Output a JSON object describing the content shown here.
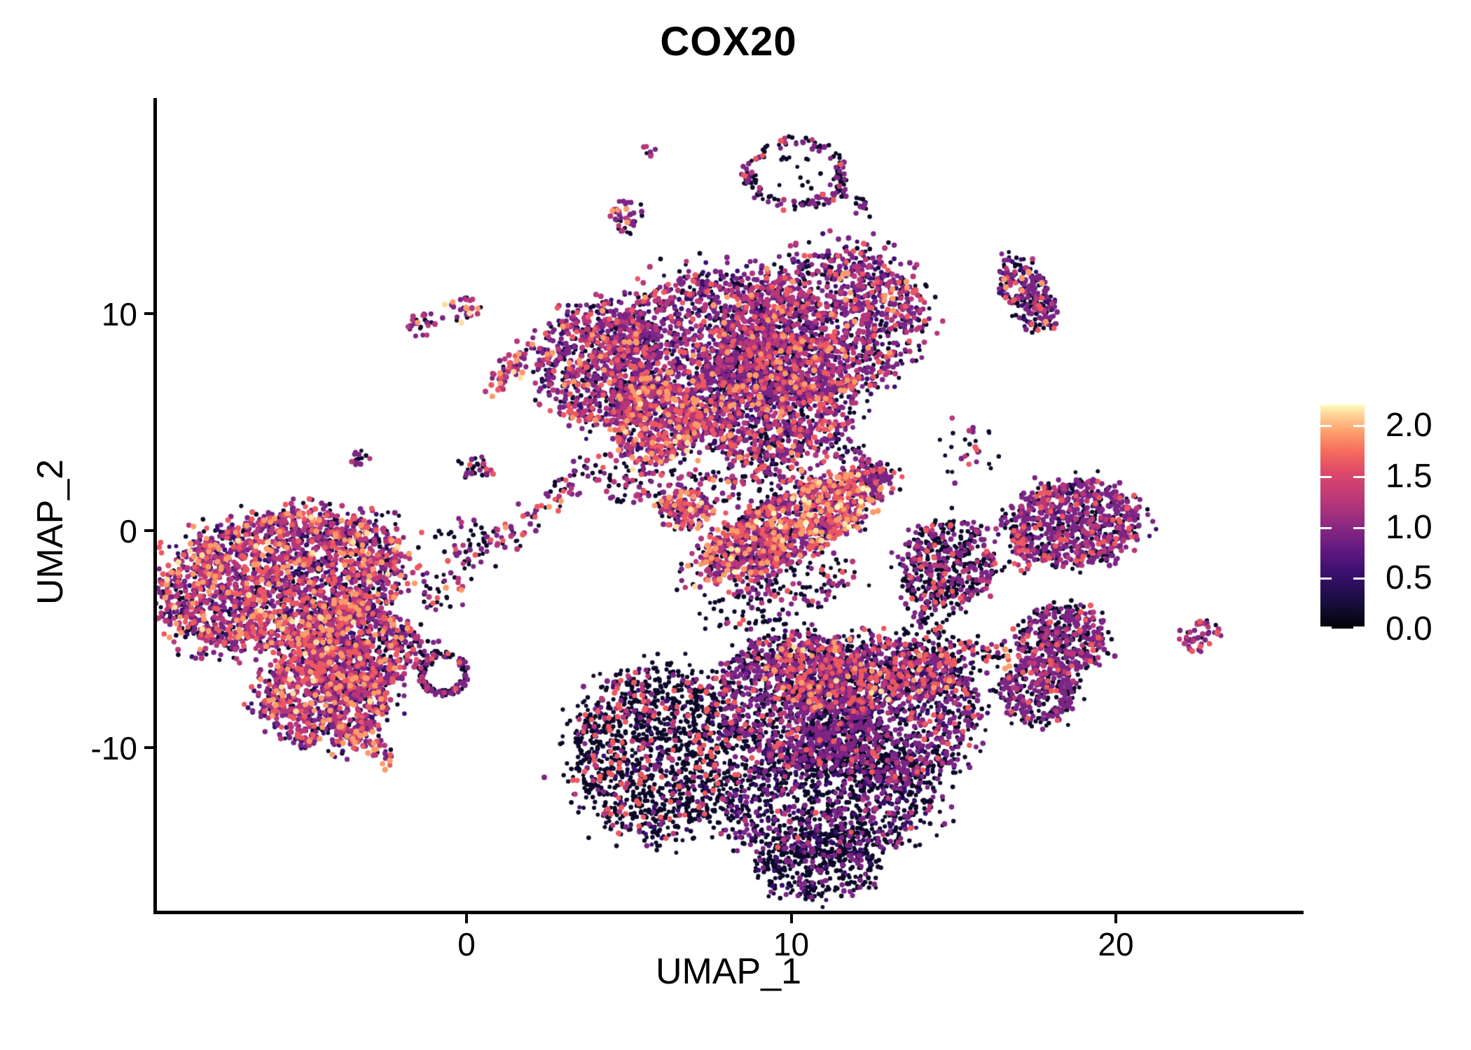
{
  "chart_data": {
    "type": "scatter",
    "title": "COX20",
    "xlabel": "UMAP_1",
    "ylabel": "UMAP_2",
    "x_ticks": [
      {
        "v": 0,
        "label": "0"
      },
      {
        "v": 10,
        "label": "10"
      },
      {
        "v": 20,
        "label": "20"
      }
    ],
    "y_ticks": [
      {
        "v": 10,
        "label": "10"
      },
      {
        "v": 0,
        "label": "0"
      },
      {
        "v": -10,
        "label": "-10"
      }
    ],
    "x_range": [
      -9.6,
      25.7
    ],
    "y_range": [
      -17.6,
      19.9
    ],
    "grid": false,
    "legend": {
      "position": "right",
      "vmin": 0.0,
      "vmax": 2.2,
      "ticks": [
        {
          "v": 2.0,
          "label": "2.0"
        },
        {
          "v": 1.5,
          "label": "1.5"
        },
        {
          "v": 1.0,
          "label": "1.0"
        },
        {
          "v": 0.5,
          "label": "0.5"
        },
        {
          "v": 0.0,
          "label": "0.0"
        }
      ]
    },
    "expression_palette": {
      "black": "#0D0829",
      "dark": "#3B0F70",
      "purple": "#7C2584",
      "magenta": "#B73779",
      "pink": "#EC5860",
      "orange": "#FB9B6A",
      "cream": "#FDDEA0",
      "yellow": "#FCF7BB"
    },
    "colorbar_stops": [
      [
        0,
        "#000004"
      ],
      [
        0.1,
        "#140E36"
      ],
      [
        0.25,
        "#3B0F70"
      ],
      [
        0.36,
        "#641A80"
      ],
      [
        0.46,
        "#8C2981"
      ],
      [
        0.57,
        "#B73779"
      ],
      [
        0.7,
        "#DE4968"
      ],
      [
        0.8,
        "#F7705C"
      ],
      [
        0.88,
        "#FE9F6D"
      ],
      [
        0.95,
        "#FECF92"
      ],
      [
        1,
        "#FCFDBF"
      ]
    ],
    "clusters": [
      {
        "id": "left-core",
        "type": "blob",
        "x": -5.74,
        "y": -2.32,
        "rx": 3.78,
        "ry": 3.06,
        "rot": -10,
        "n": 2400,
        "mix": {
          "black": 0.2,
          "dark": 0.15,
          "purple": 0.26,
          "magenta": 0.2,
          "pink": 0.12,
          "orange": 0.06,
          "cream": 0.01
        }
      },
      {
        "id": "left-core-east",
        "type": "blob",
        "x": -3.47,
        "y": -5.55,
        "rx": 1.73,
        "ry": 2.19,
        "rot": 0,
        "n": 750,
        "mix": {
          "black": 0.22,
          "dark": 0.15,
          "purple": 0.28,
          "magenta": 0.18,
          "pink": 0.1,
          "orange": 0.06,
          "cream": 0.01
        }
      },
      {
        "id": "left-lower-lobe",
        "type": "blob",
        "x": -4.34,
        "y": -7.65,
        "rx": 1.98,
        "ry": 2.32,
        "rot": 0,
        "n": 800,
        "mix": {
          "black": 0.18,
          "dark": 0.14,
          "purple": 0.26,
          "magenta": 0.22,
          "pink": 0.13,
          "orange": 0.06,
          "cream": 0.01
        }
      },
      {
        "id": "left-tail",
        "type": "chain",
        "x1": -4.06,
        "y1": -8.84,
        "x2": -2.29,
        "y2": -10.58,
        "sigma": 7,
        "n": 70,
        "mix": {
          "black": 0.15,
          "dark": 0.1,
          "purple": 0.3,
          "magenta": 0.25,
          "pink": 0.1,
          "orange": 0.1
        }
      },
      {
        "id": "left-east-scatter",
        "type": "blob",
        "x": -0.02,
        "y": -0.39,
        "rx": 0.86,
        "ry": 1.13,
        "rot": 0,
        "n": 35,
        "mix": {
          "black": 0.55,
          "purple": 0.3,
          "magenta": 0.1,
          "pink": 0.05
        }
      },
      {
        "id": "bridge-to-ringlet",
        "type": "chain",
        "x1": -1.96,
        "y1": -4.74,
        "x2": -1.04,
        "y2": -5.94,
        "sigma": 10,
        "n": 45,
        "mix": {
          "black": 0.5,
          "purple": 0.35,
          "magenta": 0.15
        }
      },
      {
        "id": "dark-ringlet",
        "type": "ring",
        "x": -0.71,
        "y": -6.58,
        "rx": 0.73,
        "ry": 0.97,
        "rot": 0,
        "n": 140,
        "mix": {
          "black": 0.56,
          "purple": 0.33,
          "magenta": 0.08,
          "pink": 0.03
        }
      },
      {
        "id": "tiny-west",
        "type": "blob",
        "x": -3.26,
        "y": 3.32,
        "rx": 0.3,
        "ry": 0.39,
        "rot": 0,
        "n": 14,
        "mix": {
          "purple": 0.4,
          "magenta": 0.3,
          "black": 0.3
        }
      },
      {
        "id": "small-pair-a",
        "type": "blob",
        "x": -1.32,
        "y": 9.55,
        "rx": 0.47,
        "ry": 0.58,
        "rot": 0,
        "n": 26,
        "mix": {
          "purple": 0.45,
          "black": 0.28,
          "magenta": 0.15,
          "orange": 0.12
        }
      },
      {
        "id": "small-pair-b",
        "type": "blob",
        "x": -0.17,
        "y": 10.19,
        "rx": 0.54,
        "ry": 0.61,
        "rot": 0,
        "n": 30,
        "mix": {
          "purple": 0.4,
          "black": 0.2,
          "magenta": 0.2,
          "orange": 0.14,
          "cream": 0.06
        }
      },
      {
        "id": "bright-chain",
        "type": "chain",
        "x1": 0.73,
        "y1": 6.65,
        "x2": 2.07,
        "y2": 8.45,
        "sigma": 9,
        "n": 58,
        "mix": {
          "purple": 0.3,
          "magenta": 0.25,
          "black": 0.15,
          "pink": 0.12,
          "orange": 0.12,
          "cream": 0.06
        }
      },
      {
        "id": "tiny-top",
        "type": "blob",
        "x": 5.65,
        "y": 17.52,
        "rx": 0.22,
        "ry": 0.29,
        "rot": 0,
        "n": 7,
        "mix": {
          "magenta": 0.45,
          "purple": 0.3,
          "black": 0.25
        }
      },
      {
        "id": "small-top",
        "type": "blob",
        "x": 4.98,
        "y": 14.42,
        "rx": 0.58,
        "ry": 0.77,
        "rot": 0,
        "n": 42,
        "mix": {
          "purple": 0.42,
          "black": 0.25,
          "magenta": 0.15,
          "orange": 0.15,
          "pink": 0.03
        }
      },
      {
        "id": "top-ring",
        "type": "ring",
        "x": 10.12,
        "y": 16.45,
        "rx": 1.55,
        "ry": 1.61,
        "rot": 0,
        "n": 150,
        "mix": {
          "black": 0.58,
          "purple": 0.32,
          "magenta": 0.07,
          "pink": 0.03
        }
      },
      {
        "id": "top-ring-tail",
        "type": "chain",
        "x1": 11.2,
        "y1": 16.0,
        "x2": 12.23,
        "y2": 14.84,
        "sigma": 6,
        "n": 22,
        "mix": {
          "black": 0.7,
          "purple": 0.3
        }
      },
      {
        "id": "top-ring-inner",
        "type": "blob",
        "x": 10.12,
        "y": 16.45,
        "rx": 0.8,
        "ry": 0.85,
        "rot": 0,
        "n": 14,
        "mix": {
          "black": 0.85,
          "purple": 0.15
        }
      },
      {
        "id": "center-main-west",
        "type": "blob",
        "x": 7.42,
        "y": 8.16,
        "rx": 3.24,
        "ry": 3.71,
        "rot": -15,
        "n": 1450,
        "mix": {
          "black": 0.27,
          "dark": 0.18,
          "purple": 0.3,
          "magenta": 0.15,
          "pink": 0.08,
          "orange": 0.02
        }
      },
      {
        "id": "center-main-east",
        "type": "blob",
        "x": 10.87,
        "y": 9.35,
        "rx": 3.24,
        "ry": 3.29,
        "rot": -20,
        "n": 1550,
        "mix": {
          "black": 0.25,
          "dark": 0.17,
          "purple": 0.32,
          "magenta": 0.17,
          "pink": 0.07,
          "orange": 0.02
        }
      },
      {
        "id": "center-main-south",
        "type": "blob",
        "x": 9.36,
        "y": 5.9,
        "rx": 2.59,
        "ry": 2.74,
        "rot": 0,
        "n": 900,
        "mix": {
          "black": 0.3,
          "dark": 0.15,
          "purple": 0.28,
          "magenta": 0.15,
          "pink": 0.09,
          "orange": 0.03
        }
      },
      {
        "id": "center-west-arm",
        "type": "blob",
        "x": 4.14,
        "y": 7.68,
        "rx": 1.9,
        "ry": 2.74,
        "rot": 15,
        "n": 800,
        "mix": {
          "black": 0.22,
          "dark": 0.18,
          "purple": 0.34,
          "magenta": 0.16,
          "pink": 0.08,
          "orange": 0.02
        }
      },
      {
        "id": "center-hotspot",
        "type": "blob",
        "x": 5.8,
        "y": 4.94,
        "rx": 1.34,
        "ry": 1.87,
        "rot": 0,
        "n": 430,
        "mix": {
          "black": 0.18,
          "dark": 0.1,
          "purple": 0.2,
          "magenta": 0.24,
          "pink": 0.18,
          "orange": 0.08,
          "cream": 0.02
        }
      },
      {
        "id": "center-south-fringe",
        "type": "blob",
        "x": 7.21,
        "y": 2.52,
        "rx": 3.24,
        "ry": 1.77,
        "rot": 0,
        "n": 280,
        "mix": {
          "black": 0.5,
          "purple": 0.25,
          "magenta": 0.12,
          "pink": 0.1,
          "orange": 0.03
        }
      },
      {
        "id": "center-bridge",
        "type": "chain",
        "x1": 3.93,
        "y1": 3.23,
        "x2": -1.42,
        "y2": -3.61,
        "sigma": 12,
        "n": 130,
        "mix": {
          "black": 0.45,
          "purple": 0.3,
          "magenta": 0.13,
          "pink": 0.1,
          "orange": 0.02
        }
      },
      {
        "id": "bridge-blob",
        "type": "blob",
        "x": 0.26,
        "y": 2.77,
        "rx": 0.54,
        "ry": 0.58,
        "rot": 0,
        "n": 30,
        "mix": {
          "black": 0.55,
          "purple": 0.3,
          "magenta": 0.1,
          "pink": 0.05
        }
      },
      {
        "id": "hook-blob",
        "type": "blob",
        "x": 6.73,
        "y": 0.97,
        "rx": 0.78,
        "ry": 0.9,
        "rot": 0,
        "n": 130,
        "mix": {
          "purple": 0.33,
          "magenta": 0.25,
          "pink": 0.18,
          "orange": 0.1,
          "black": 0.12,
          "cream": 0.02
        }
      },
      {
        "id": "wing",
        "type": "blob",
        "x": 9.97,
        "y": 0.19,
        "rx": 3.13,
        "ry": 1.45,
        "rot": -26,
        "n": 1250,
        "mix": {
          "black": 0.22,
          "dark": 0.04,
          "purple": 0.28,
          "magenta": 0.19,
          "pink": 0.15,
          "orange": 0.09,
          "cream": 0.02,
          "yellow": 0.01
        }
      },
      {
        "id": "wing-tip",
        "type": "blob",
        "x": 12.53,
        "y": 2.74,
        "rx": 0.52,
        "ry": 0.65,
        "rot": 0,
        "n": 60,
        "mix": {
          "purple": 0.5,
          "black": 0.28,
          "magenta": 0.15,
          "pink": 0.07
        }
      },
      {
        "id": "wing-under-fringe",
        "type": "blob",
        "x": 9.69,
        "y": -2.9,
        "rx": 2.37,
        "ry": 1.29,
        "rot": -15,
        "n": 170,
        "mix": {
          "black": 0.62,
          "purple": 0.23,
          "magenta": 0.08,
          "pink": 0.07
        }
      },
      {
        "id": "gap-scatter",
        "type": "blob",
        "x": 10.23,
        "y": 3.32,
        "rx": 2.05,
        "ry": 1.45,
        "rot": 0,
        "n": 100,
        "mix": {
          "black": 0.6,
          "purple": 0.28,
          "magenta": 0.06,
          "pink": 0.06
        }
      },
      {
        "id": "bottom-west-lobe",
        "type": "blob",
        "x": 5.8,
        "y": -10.23,
        "rx": 2.48,
        "ry": 3.87,
        "rot": 10,
        "n": 1400,
        "mix": {
          "black": 0.75,
          "dark": 0.06,
          "purple": 0.05,
          "magenta": 0.05,
          "pink": 0.09
        }
      },
      {
        "id": "bottom-mid",
        "type": "blob",
        "x": 10.12,
        "y": -7.81,
        "rx": 2.48,
        "ry": 3.06,
        "rot": 0,
        "n": 1250,
        "mix": {
          "black": 0.48,
          "dark": 0.12,
          "purple": 0.31,
          "magenta": 0.06,
          "pink": 0.03
        }
      },
      {
        "id": "bottom-east",
        "type": "blob",
        "x": 13.03,
        "y": -8.29,
        "rx": 2.7,
        "ry": 3.39,
        "rot": 0,
        "n": 1350,
        "mix": {
          "black": 0.5,
          "dark": 0.1,
          "purple": 0.31,
          "magenta": 0.06,
          "pink": 0.03
        }
      },
      {
        "id": "bottom-south",
        "type": "blob",
        "x": 11.09,
        "y": -12.48,
        "rx": 3.24,
        "ry": 2.74,
        "rot": 0,
        "n": 1200,
        "mix": {
          "black": 0.72,
          "dark": 0.1,
          "purple": 0.15,
          "magenta": 0.02,
          "pink": 0.01
        }
      },
      {
        "id": "bottom-top-hotspot",
        "type": "blob",
        "x": 11.2,
        "y": -6.52,
        "rx": 2.05,
        "ry": 1.61,
        "rot": 0,
        "n": 330,
        "mix": {
          "black": 0.3,
          "purple": 0.18,
          "magenta": 0.2,
          "pink": 0.21,
          "orange": 0.09,
          "cream": 0.02
        }
      },
      {
        "id": "bottom-tip",
        "type": "blob",
        "x": 10.77,
        "y": -15.39,
        "rx": 1.83,
        "ry": 1.61,
        "rot": 0,
        "n": 380,
        "mix": {
          "black": 0.82,
          "dark": 0.08,
          "purple": 0.1
        }
      },
      {
        "id": "right-purple",
        "type": "blob",
        "x": 18.68,
        "y": 0.35,
        "rx": 2.05,
        "ry": 2.0,
        "rot": 0,
        "n": 760,
        "mix": {
          "black": 0.3,
          "dark": 0.08,
          "purple": 0.44,
          "magenta": 0.12,
          "pink": 0.06
        }
      },
      {
        "id": "right-purple-west-edge",
        "type": "chain",
        "x1": 16.96,
        "y1": -0.13,
        "x2": 17.3,
        "y2": -1.81,
        "sigma": 8,
        "n": 35,
        "mix": {
          "black": 0.35,
          "pink": 0.3,
          "purple": 0.25,
          "magenta": 0.1
        }
      },
      {
        "id": "mid-dark",
        "type": "blob",
        "x": 14.8,
        "y": -1.55,
        "rx": 1.47,
        "ry": 2.0,
        "rot": 0,
        "n": 500,
        "mix": {
          "black": 0.6,
          "purple": 0.3,
          "magenta": 0.06,
          "pink": 0.04
        }
      },
      {
        "id": "mid-dark-tail",
        "type": "chain",
        "x1": 13.85,
        "y1": -3.48,
        "x2": 14.97,
        "y2": -6.19,
        "sigma": 12,
        "n": 70,
        "mix": {
          "black": 0.68,
          "purple": 0.22,
          "pink": 0.1
        }
      },
      {
        "id": "southeast-upper",
        "type": "blob",
        "x": 18.34,
        "y": -4.97,
        "rx": 1.34,
        "ry": 1.55,
        "rot": 0,
        "n": 420,
        "mix": {
          "black": 0.45,
          "purple": 0.44,
          "magenta": 0.07,
          "pink": 0.04
        }
      },
      {
        "id": "southeast-lower",
        "type": "blob",
        "x": 17.63,
        "y": -7.42,
        "rx": 1.19,
        "ry": 1.55,
        "rot": 0,
        "n": 330,
        "mix": {
          "black": 0.5,
          "purple": 0.43,
          "magenta": 0.04,
          "pink": 0.03
        }
      },
      {
        "id": "red-hotspot",
        "type": "blob",
        "x": 14.07,
        "y": -6.58,
        "rx": 1.04,
        "ry": 1.23,
        "rot": 0,
        "n": 150,
        "mix": {
          "black": 0.33,
          "pink": 0.28,
          "magenta": 0.16,
          "purple": 0.17,
          "orange": 0.06
        }
      },
      {
        "id": "red-chain",
        "type": "chain",
        "x1": 15.1,
        "y1": -5.48,
        "x2": 16.87,
        "y2": -5.87,
        "sigma": 10,
        "n": 55,
        "mix": {
          "black": 0.45,
          "pink": 0.27,
          "purple": 0.21,
          "orange": 0.07
        }
      },
      {
        "id": "far-right-small",
        "type": "blob",
        "x": 22.65,
        "y": -4.84,
        "rx": 0.65,
        "ry": 0.65,
        "rot": -25,
        "n": 45,
        "mix": {
          "purple": 0.48,
          "magenta": 0.2,
          "black": 0.27,
          "pink": 0.05
        }
      },
      {
        "id": "top-right-diagonal",
        "type": "blob",
        "x": 17.26,
        "y": 10.9,
        "rx": 1.29,
        "ry": 0.97,
        "rot": 55,
        "n": 250,
        "mix": {
          "black": 0.45,
          "dark": 0.12,
          "purple": 0.28,
          "magenta": 0.08,
          "pink": 0.04,
          "orange": 0.03
        }
      },
      {
        "id": "right-sparse",
        "type": "blob",
        "x": 15.45,
        "y": 3.71,
        "rx": 0.86,
        "ry": 1.35,
        "rot": 0,
        "n": 28,
        "mix": {
          "black": 0.5,
          "purple": 0.25,
          "magenta": 0.15,
          "pink": 0.1
        }
      }
    ]
  }
}
